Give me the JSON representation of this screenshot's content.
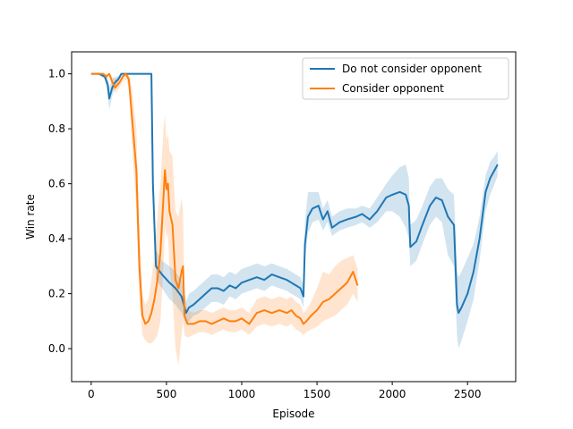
{
  "chart_data": {
    "type": "line",
    "title": "",
    "xlabel": "Episode",
    "ylabel": "Win rate",
    "xlim": [
      -130,
      2820
    ],
    "ylim": [
      -0.12,
      1.08
    ],
    "xticks": [
      0,
      500,
      1000,
      1500,
      2000,
      2500
    ],
    "yticks": [
      0.0,
      0.2,
      0.4,
      0.6,
      0.8,
      1.0
    ],
    "xtick_labels": [
      "0",
      "500",
      "1000",
      "1500",
      "2000",
      "2500"
    ],
    "ytick_labels": [
      "0.0",
      "0.2",
      "0.4",
      "0.6",
      "0.8",
      "1.0"
    ],
    "legend_position": "top-right",
    "grid": false,
    "series": [
      {
        "name": "Do not consider opponent",
        "color": "#1f77b4",
        "band_color": "#1f77b4",
        "x": [
          0,
          50,
          90,
          110,
          120,
          140,
          160,
          180,
          200,
          230,
          260,
          300,
          340,
          380,
          400,
          410,
          430,
          470,
          520,
          560,
          600,
          630,
          650,
          680,
          720,
          760,
          800,
          840,
          880,
          920,
          960,
          1000,
          1050,
          1100,
          1150,
          1200,
          1250,
          1300,
          1330,
          1360,
          1390,
          1410,
          1420,
          1440,
          1470,
          1510,
          1540,
          1570,
          1600,
          1650,
          1700,
          1760,
          1800,
          1850,
          1900,
          1960,
          2000,
          2050,
          2090,
          2110,
          2120,
          2160,
          2200,
          2250,
          2290,
          2330,
          2370,
          2410,
          2430,
          2440,
          2460,
          2500,
          2540,
          2580,
          2620,
          2650,
          2680,
          2700
        ],
        "y": [
          1.0,
          1.0,
          0.99,
          0.96,
          0.91,
          0.95,
          0.97,
          0.98,
          1.0,
          1.0,
          1.0,
          1.0,
          1.0,
          1.0,
          1.0,
          0.6,
          0.3,
          0.27,
          0.24,
          0.22,
          0.19,
          0.13,
          0.15,
          0.16,
          0.18,
          0.2,
          0.22,
          0.22,
          0.21,
          0.23,
          0.22,
          0.24,
          0.25,
          0.26,
          0.25,
          0.27,
          0.26,
          0.25,
          0.24,
          0.23,
          0.22,
          0.19,
          0.38,
          0.48,
          0.51,
          0.52,
          0.47,
          0.5,
          0.44,
          0.46,
          0.47,
          0.48,
          0.49,
          0.47,
          0.5,
          0.55,
          0.56,
          0.57,
          0.56,
          0.52,
          0.37,
          0.39,
          0.45,
          0.52,
          0.55,
          0.54,
          0.48,
          0.45,
          0.16,
          0.13,
          0.15,
          0.2,
          0.28,
          0.4,
          0.57,
          0.62,
          0.65,
          0.67
        ],
        "lower": [
          1.0,
          1.0,
          0.98,
          0.93,
          0.87,
          0.92,
          0.95,
          0.97,
          1.0,
          1.0,
          1.0,
          1.0,
          1.0,
          1.0,
          1.0,
          0.55,
          0.25,
          0.22,
          0.18,
          0.16,
          0.13,
          0.09,
          0.1,
          0.12,
          0.13,
          0.15,
          0.17,
          0.17,
          0.16,
          0.19,
          0.18,
          0.2,
          0.21,
          0.22,
          0.21,
          0.23,
          0.22,
          0.21,
          0.2,
          0.19,
          0.18,
          0.15,
          0.32,
          0.42,
          0.46,
          0.47,
          0.43,
          0.46,
          0.41,
          0.43,
          0.44,
          0.45,
          0.46,
          0.44,
          0.46,
          0.5,
          0.5,
          0.48,
          0.44,
          0.4,
          0.3,
          0.32,
          0.38,
          0.45,
          0.48,
          0.46,
          0.34,
          0.3,
          0.05,
          0.0,
          0.03,
          0.1,
          0.18,
          0.32,
          0.5,
          0.56,
          0.6,
          0.63
        ],
        "upper": [
          1.0,
          1.0,
          1.0,
          0.99,
          0.95,
          0.98,
          0.99,
          0.99,
          1.0,
          1.0,
          1.0,
          1.0,
          1.0,
          1.0,
          1.0,
          0.65,
          0.36,
          0.32,
          0.3,
          0.28,
          0.25,
          0.17,
          0.2,
          0.21,
          0.23,
          0.25,
          0.27,
          0.27,
          0.26,
          0.28,
          0.27,
          0.29,
          0.3,
          0.31,
          0.3,
          0.31,
          0.3,
          0.29,
          0.28,
          0.27,
          0.26,
          0.23,
          0.46,
          0.57,
          0.57,
          0.57,
          0.51,
          0.54,
          0.48,
          0.5,
          0.51,
          0.51,
          0.52,
          0.51,
          0.55,
          0.6,
          0.63,
          0.66,
          0.67,
          0.62,
          0.45,
          0.47,
          0.52,
          0.59,
          0.62,
          0.62,
          0.58,
          0.56,
          0.28,
          0.26,
          0.28,
          0.33,
          0.38,
          0.48,
          0.63,
          0.68,
          0.7,
          0.72
        ]
      },
      {
        "name": "Consider opponent",
        "color": "#ff7f0e",
        "band_color": "#ff7f0e",
        "x": [
          0,
          40,
          80,
          100,
          120,
          140,
          160,
          190,
          210,
          230,
          250,
          270,
          300,
          320,
          340,
          360,
          380,
          400,
          420,
          440,
          460,
          480,
          490,
          500,
          510,
          520,
          540,
          560,
          580,
          600,
          610,
          620,
          640,
          680,
          720,
          760,
          800,
          840,
          880,
          920,
          960,
          1000,
          1050,
          1100,
          1150,
          1200,
          1250,
          1300,
          1330,
          1360,
          1390,
          1410,
          1430,
          1460,
          1500,
          1540,
          1580,
          1620,
          1660,
          1700,
          1740,
          1770
        ],
        "y": [
          1.0,
          1.0,
          1.0,
          0.99,
          1.0,
          0.97,
          0.95,
          0.97,
          0.99,
          1.0,
          0.98,
          0.85,
          0.65,
          0.3,
          0.12,
          0.09,
          0.1,
          0.13,
          0.18,
          0.25,
          0.35,
          0.55,
          0.65,
          0.58,
          0.6,
          0.5,
          0.45,
          0.25,
          0.22,
          0.28,
          0.3,
          0.12,
          0.09,
          0.09,
          0.1,
          0.1,
          0.09,
          0.1,
          0.11,
          0.1,
          0.1,
          0.11,
          0.09,
          0.13,
          0.14,
          0.13,
          0.14,
          0.13,
          0.14,
          0.12,
          0.11,
          0.09,
          0.1,
          0.12,
          0.14,
          0.17,
          0.18,
          0.2,
          0.22,
          0.24,
          0.28,
          0.23
        ],
        "lower": [
          1.0,
          1.0,
          1.0,
          0.98,
          1.0,
          0.95,
          0.93,
          0.95,
          0.97,
          0.98,
          0.95,
          0.75,
          0.5,
          0.18,
          0.05,
          0.03,
          0.02,
          0.02,
          0.03,
          0.05,
          0.1,
          0.3,
          0.45,
          0.4,
          0.42,
          0.3,
          0.2,
          0.0,
          -0.06,
          0.05,
          0.1,
          0.05,
          0.04,
          0.05,
          0.06,
          0.06,
          0.05,
          0.06,
          0.07,
          0.06,
          0.06,
          0.07,
          0.05,
          0.08,
          0.09,
          0.08,
          0.09,
          0.08,
          0.09,
          0.07,
          0.06,
          0.05,
          0.06,
          0.07,
          0.08,
          0.1,
          0.11,
          0.12,
          0.14,
          0.16,
          0.2,
          0.17
        ],
        "upper": [
          1.0,
          1.0,
          1.0,
          1.0,
          1.0,
          0.99,
          0.98,
          0.99,
          1.0,
          1.0,
          1.0,
          0.95,
          0.8,
          0.45,
          0.2,
          0.16,
          0.18,
          0.25,
          0.35,
          0.48,
          0.6,
          0.8,
          0.85,
          0.76,
          0.78,
          0.72,
          0.7,
          0.5,
          0.48,
          0.55,
          0.5,
          0.2,
          0.14,
          0.13,
          0.14,
          0.14,
          0.13,
          0.14,
          0.15,
          0.14,
          0.14,
          0.15,
          0.13,
          0.18,
          0.19,
          0.18,
          0.19,
          0.18,
          0.19,
          0.17,
          0.16,
          0.13,
          0.14,
          0.17,
          0.22,
          0.28,
          0.27,
          0.3,
          0.32,
          0.33,
          0.34,
          0.29
        ]
      }
    ]
  }
}
